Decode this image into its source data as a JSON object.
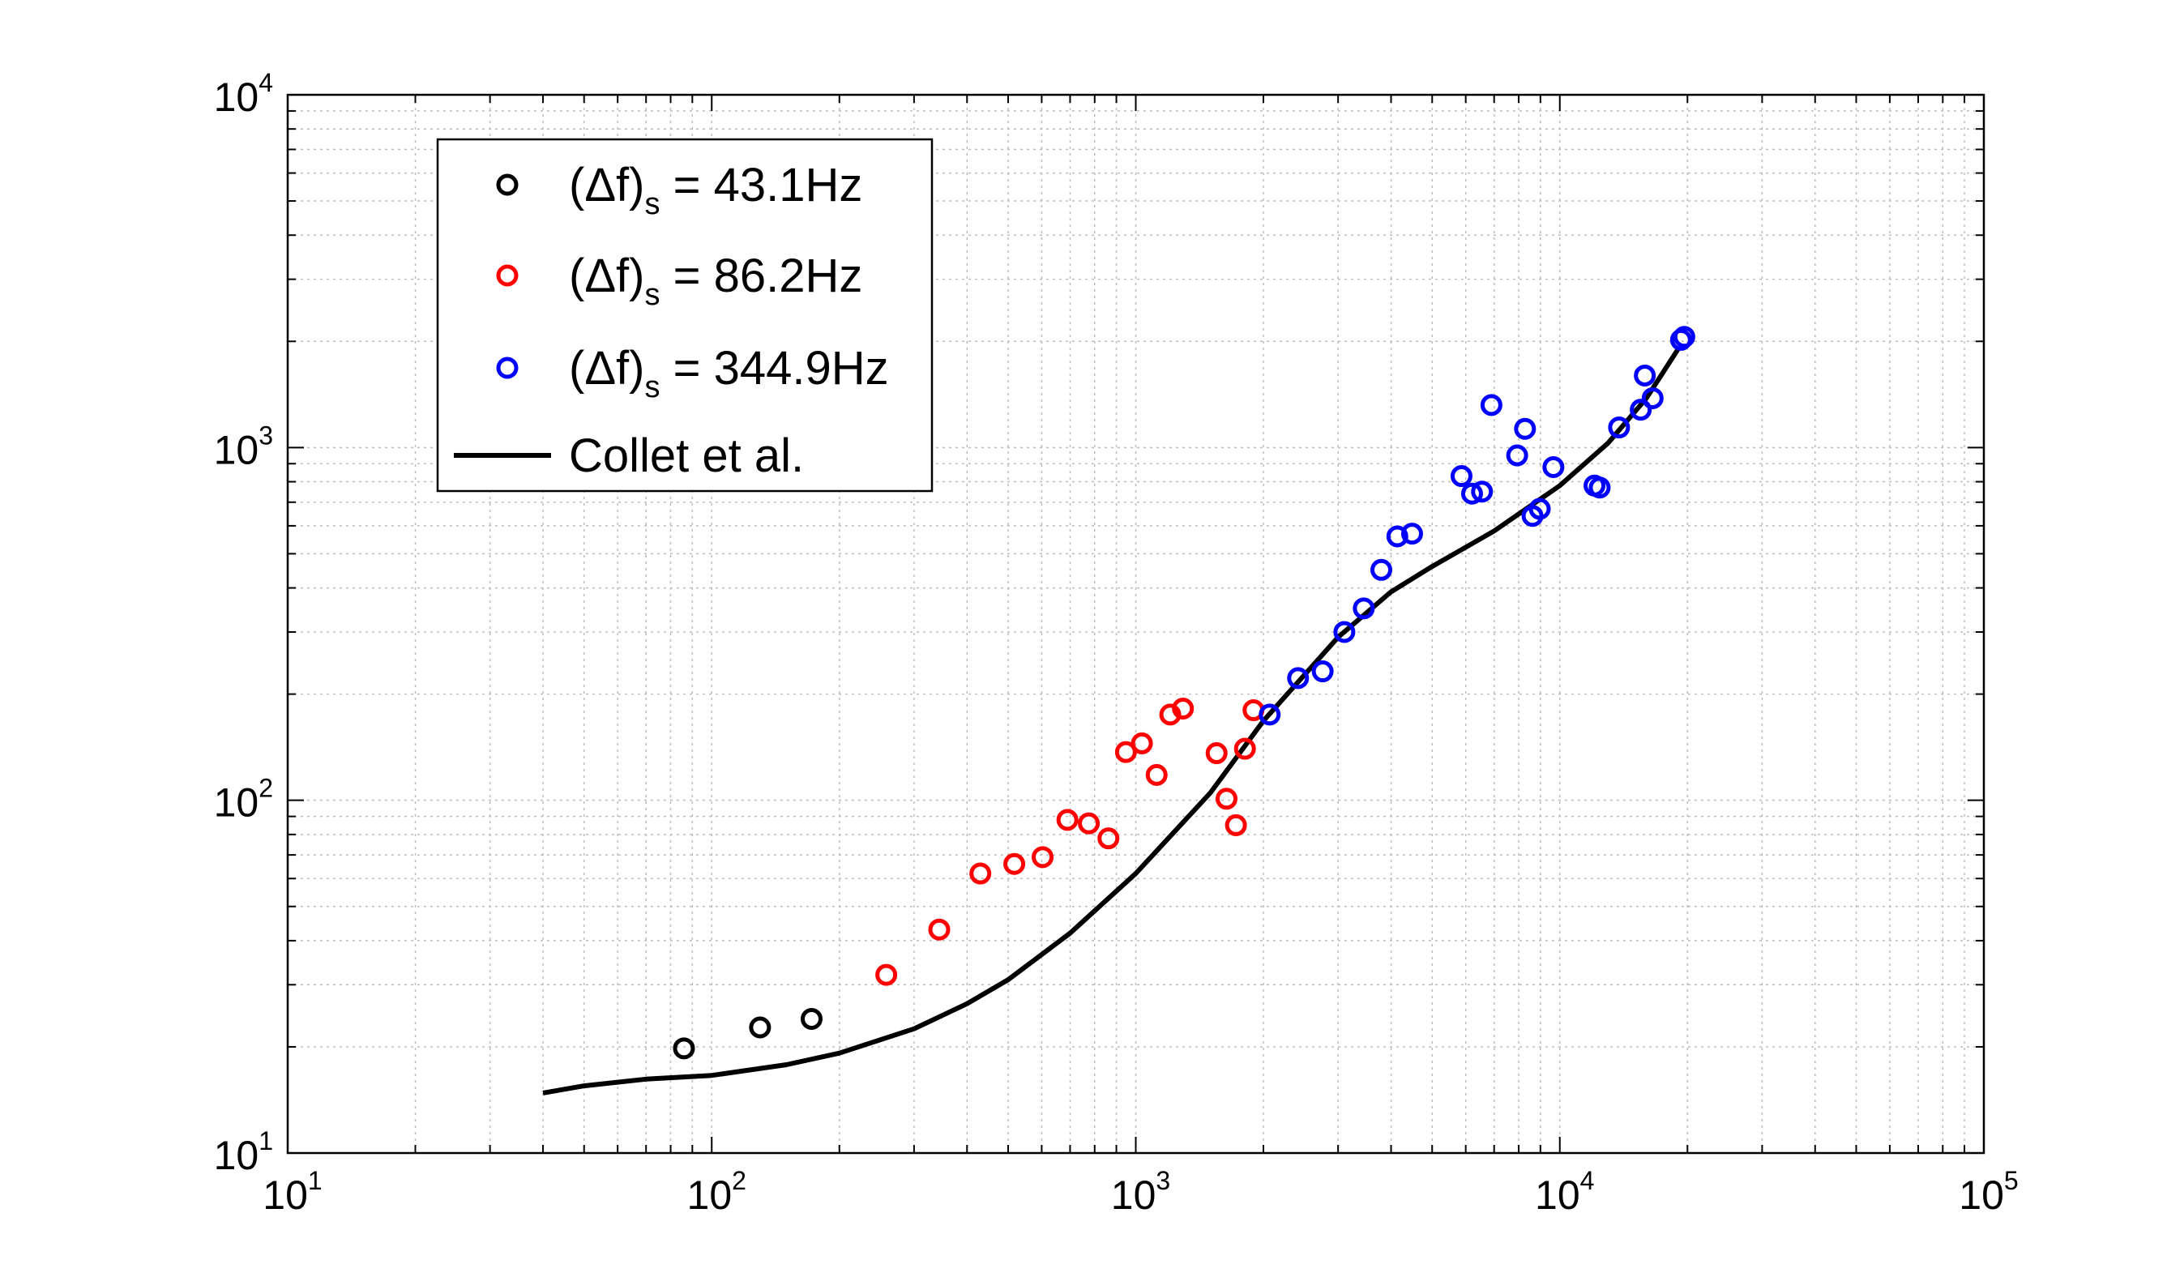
{
  "chart_data": {
    "type": "scatter",
    "x_scale": "log",
    "y_scale": "log",
    "xlim": [
      10,
      100000
    ],
    "ylim": [
      10,
      10000
    ],
    "grid": true,
    "legend_position": "top-left",
    "x_ticks": [
      {
        "base": "10",
        "exp": "1",
        "value": 10
      },
      {
        "base": "10",
        "exp": "2",
        "value": 100
      },
      {
        "base": "10",
        "exp": "3",
        "value": 1000
      },
      {
        "base": "10",
        "exp": "4",
        "value": 10000
      },
      {
        "base": "10",
        "exp": "5",
        "value": 100000
      }
    ],
    "y_ticks": [
      {
        "base": "10",
        "exp": "1",
        "value": 10
      },
      {
        "base": "10",
        "exp": "2",
        "value": 100
      },
      {
        "base": "10",
        "exp": "3",
        "value": 1000
      },
      {
        "base": "10",
        "exp": "4",
        "value": 10000
      }
    ],
    "series": [
      {
        "type": "scatter",
        "color": "#000000",
        "legend": {
          "prefix": "(Δf)",
          "sub": "s",
          "suffix": " = 43.1Hz"
        },
        "x": [
          86,
          130,
          172
        ],
        "y": [
          19.8,
          22.7,
          24.0
        ]
      },
      {
        "type": "scatter",
        "color": "#ff0000",
        "legend": {
          "prefix": "(Δf)",
          "sub": "s",
          "suffix": " = 86.2Hz"
        },
        "x": [
          258,
          344,
          430,
          517,
          603,
          690,
          775,
          862,
          948,
          1034,
          1120,
          1206,
          1292,
          1551,
          1637,
          1723,
          1809,
          1895
        ],
        "y": [
          32,
          43,
          62,
          66,
          69,
          88,
          86,
          78,
          137,
          145,
          118,
          175,
          182,
          136,
          101,
          85,
          140,
          180
        ]
      },
      {
        "type": "scatter",
        "color": "#0000ff",
        "legend": {
          "prefix": "(Δf)",
          "sub": "s",
          "suffix": " = 344.9Hz"
        },
        "x": [
          2069,
          2414,
          2759,
          3104,
          3449,
          3794,
          4139,
          4484,
          5864,
          6209,
          6554,
          6899,
          7933,
          8278,
          8623,
          8968,
          9658,
          12072,
          12417,
          13796,
          15521,
          15866,
          16555,
          19659,
          19314
        ],
        "y": [
          175,
          222,
          232,
          300,
          350,
          450,
          560,
          570,
          830,
          740,
          750,
          1320,
          950,
          1130,
          640,
          670,
          880,
          780,
          770,
          1140,
          1280,
          1600,
          1380,
          2060,
          2020
        ]
      },
      {
        "type": "line",
        "color": "#000000",
        "legend": {
          "prefix": "Collet et al.",
          "sub": "",
          "suffix": ""
        },
        "x": [
          40,
          50,
          70,
          100,
          150,
          200,
          300,
          400,
          500,
          700,
          1000,
          1500,
          2000,
          3000,
          4000,
          5000,
          7000,
          10000,
          13000,
          16000,
          19000
        ],
        "y": [
          14.8,
          15.5,
          16.2,
          16.6,
          17.8,
          19.2,
          22.5,
          26.5,
          31,
          42,
          62,
          105,
          168,
          290,
          390,
          460,
          580,
          780,
          1030,
          1380,
          1900
        ]
      }
    ]
  }
}
